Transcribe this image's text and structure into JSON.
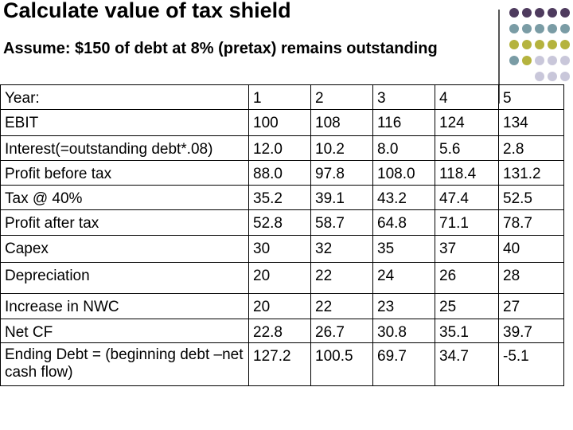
{
  "title": "Calculate value of tax shield",
  "subtitle": "Assume: $150 of debt at 8% (pretax) remains outstanding",
  "colors": {
    "purple": "#4e3b5e",
    "teal": "#7a9ca5",
    "olive": "#b5b33e",
    "lavender": "#c9c7da"
  },
  "table": {
    "rows": [
      {
        "label": "Year:",
        "values": [
          "1",
          "2",
          "3",
          "4",
          "5"
        ]
      },
      {
        "label": "EBIT",
        "values": [
          "100",
          "108",
          "116",
          "124",
          "134"
        ]
      },
      {
        "label": "Interest(=outstanding debt*.08)",
        "values": [
          "12.0",
          "10.2",
          "8.0",
          "5.6",
          "2.8"
        ]
      },
      {
        "label": "Profit before tax",
        "values": [
          "88.0",
          "97.8",
          "108.0",
          "118.4",
          "131.2"
        ]
      },
      {
        "label": "Tax @ 40%",
        "values": [
          "35.2",
          "39.1",
          "43.2",
          "47.4",
          "52.5"
        ]
      },
      {
        "label": "Profit after tax",
        "values": [
          "52.8",
          "58.7",
          "64.8",
          "71.1",
          "78.7"
        ]
      },
      {
        "label": "Capex",
        "values": [
          "30",
          "32",
          "35",
          "37",
          "40"
        ]
      },
      {
        "label": "Depreciation",
        "values": [
          "20",
          "22",
          "24",
          "26",
          "28"
        ]
      },
      {
        "label": "Increase in NWC",
        "values": [
          "20",
          "22",
          "23",
          "25",
          "27"
        ]
      },
      {
        "label": "Net CF",
        "values": [
          "22.8",
          "26.7",
          "30.8",
          "35.1",
          "39.7"
        ]
      },
      {
        "label": "Ending Debt = (beginning debt –net cash flow)",
        "values": [
          "127.2",
          "100.5",
          "69.7",
          "34.7",
          "-5.1"
        ]
      }
    ]
  }
}
